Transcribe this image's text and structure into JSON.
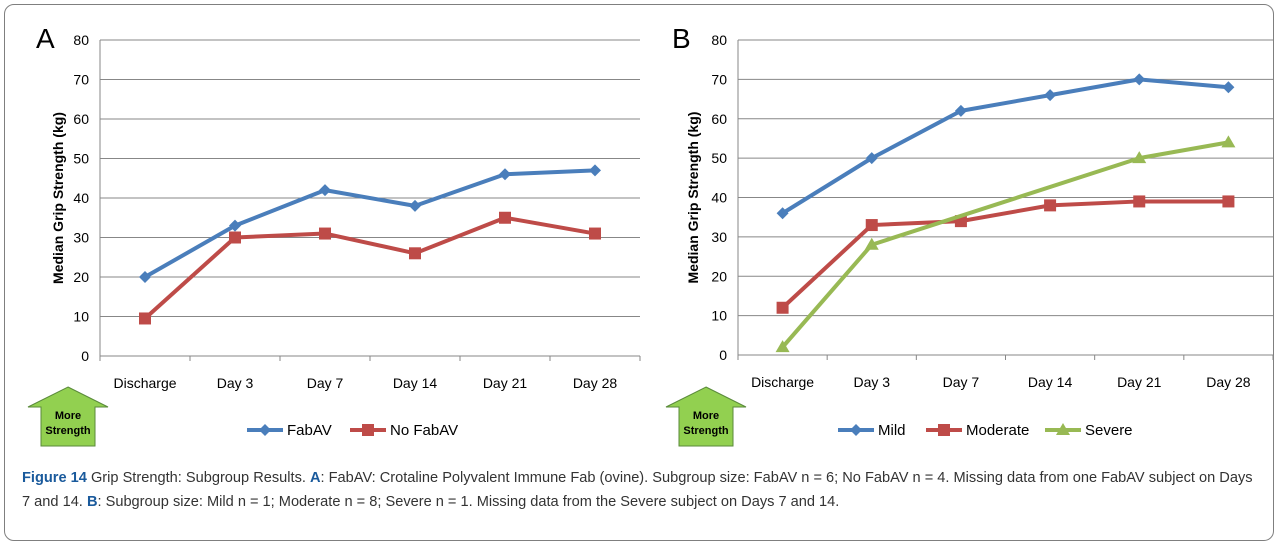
{
  "caption": {
    "label": "Figure 14",
    "title": "Grip Strength: Subgroup Results.",
    "a_letter": "A",
    "a_text": ": FabAV: Crotaline Polyvalent Immune Fab (ovine). Subgroup size: FabAV n = 6; No FabAV n = 4. Missing data from one FabAV subject on Days 7 and 14.",
    "b_letter": "B",
    "b_text": ": Subgroup size: Mild n = 1; Moderate n = 8; Severe n = 1. Missing data from the Severe subject on Days 7 and 14."
  },
  "arrow_label_line1": "More",
  "arrow_label_line2": "Strength",
  "chart_data": [
    {
      "panel": "A",
      "type": "line",
      "categories": [
        "Discharge",
        "Day 3",
        "Day 7",
        "Day 14",
        "Day 21",
        "Day 28"
      ],
      "ylabel": "Median Grip Strength (kg)",
      "ylim": [
        0,
        80
      ],
      "yticks": [
        0,
        10,
        20,
        30,
        40,
        50,
        60,
        70,
        80
      ],
      "grid": true,
      "legend_position": "bottom",
      "series": [
        {
          "name": "FabAV",
          "color": "#4a7ebb",
          "marker": "diamond",
          "values": [
            20,
            33,
            42,
            38,
            46,
            47
          ]
        },
        {
          "name": "No FabAV",
          "color": "#be4b48",
          "marker": "square",
          "values": [
            9.5,
            30,
            31,
            26,
            35,
            31
          ]
        }
      ]
    },
    {
      "panel": "B",
      "type": "line",
      "categories": [
        "Discharge",
        "Day 3",
        "Day 7",
        "Day 14",
        "Day 21",
        "Day 28"
      ],
      "ylabel": "Median Grip Strength (kg)",
      "ylim": [
        0,
        80
      ],
      "yticks": [
        0,
        10,
        20,
        30,
        40,
        50,
        60,
        70,
        80
      ],
      "grid": true,
      "legend_position": "bottom",
      "series": [
        {
          "name": "Mild",
          "color": "#4a7ebb",
          "marker": "diamond",
          "values": [
            36,
            50,
            62,
            66,
            70,
            68
          ]
        },
        {
          "name": "Moderate",
          "color": "#be4b48",
          "marker": "square",
          "values": [
            12,
            33,
            34,
            38,
            39,
            39
          ]
        },
        {
          "name": "Severe",
          "color": "#98b954",
          "marker": "triangle",
          "values": [
            2,
            28,
            null,
            null,
            50,
            54
          ]
        }
      ]
    }
  ]
}
